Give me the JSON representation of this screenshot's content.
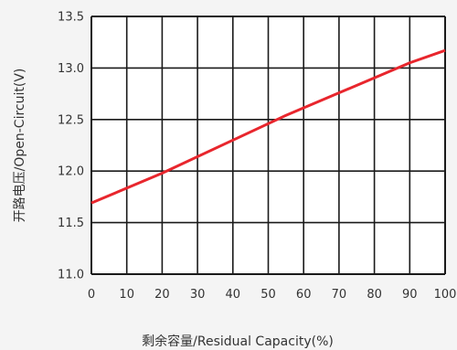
{
  "chart_data": {
    "type": "line",
    "title": "",
    "xlabel": "剩余容量/Residual Capacity(%)",
    "ylabel": "开路电压/Open-Circuit(V)",
    "xlim": [
      0,
      100
    ],
    "ylim": [
      11.0,
      13.5
    ],
    "x_ticks": [
      0,
      10,
      20,
      30,
      40,
      50,
      60,
      70,
      80,
      90,
      100
    ],
    "x_tick_labels": [
      "0",
      "10",
      "20",
      "30",
      "40",
      "50",
      "60",
      "70",
      "80",
      "90",
      "100"
    ],
    "y_ticks": [
      11.0,
      11.5,
      12.0,
      12.5,
      13.0,
      13.5
    ],
    "y_tick_labels": [
      "11.0",
      "11.5",
      "12.0",
      "12.5",
      "13.0",
      "13.5"
    ],
    "grid": true,
    "series": [
      {
        "color": "#e8262d",
        "x": [
          0,
          20,
          55,
          90,
          100
        ],
        "y": [
          11.69,
          11.98,
          12.54,
          13.05,
          13.17
        ]
      }
    ]
  }
}
